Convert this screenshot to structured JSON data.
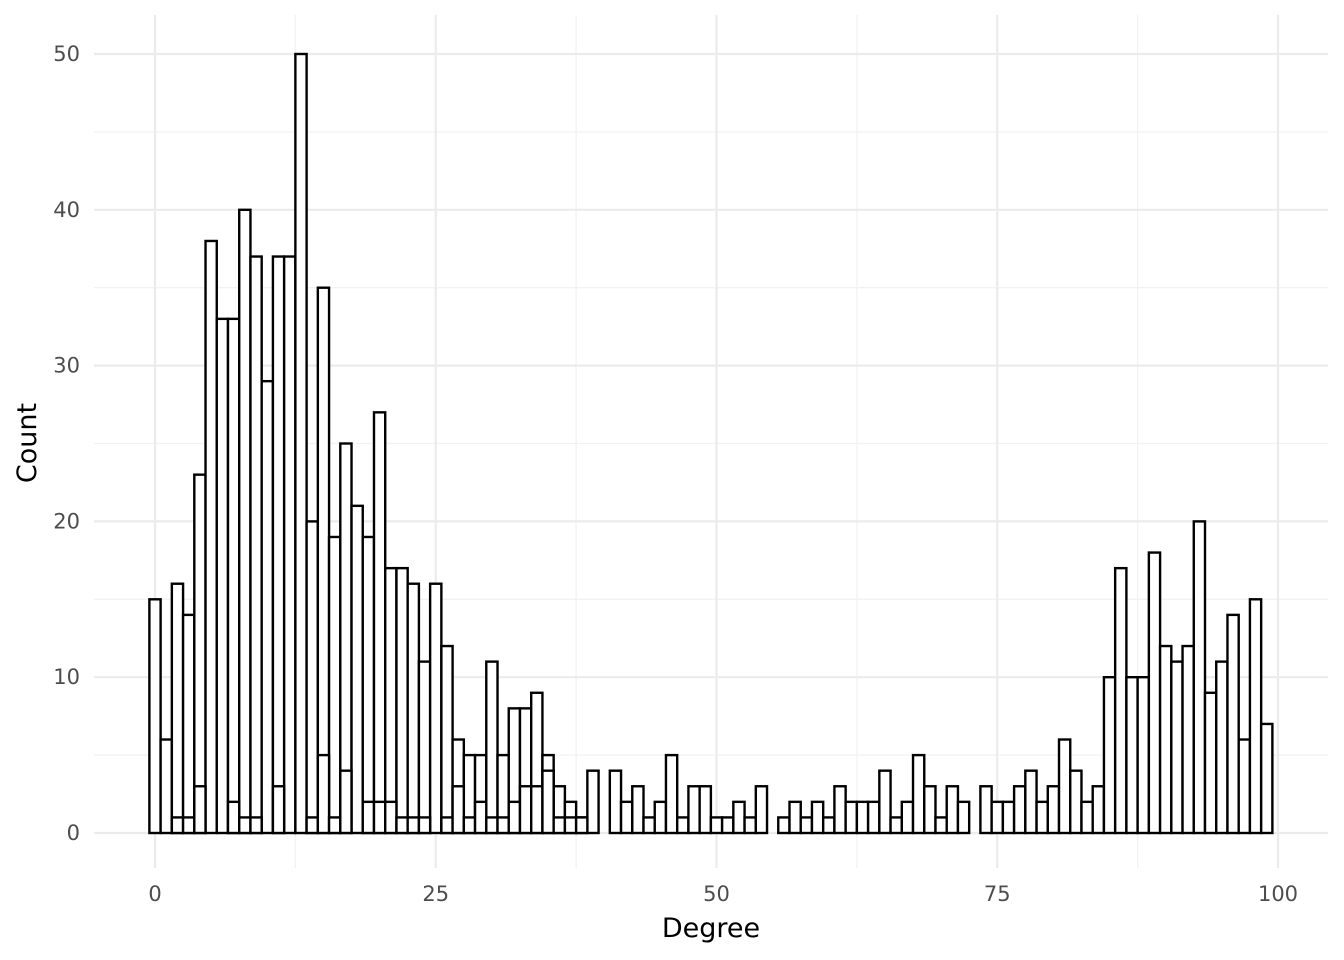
{
  "chart_data": {
    "type": "bar",
    "xlabel": "Degree",
    "ylabel": "Count",
    "xlim": [
      -2,
      100
    ],
    "ylim": [
      0,
      50
    ],
    "x_ticks": [
      0,
      25,
      50,
      75,
      100
    ],
    "y_ticks": [
      0,
      10,
      20,
      30,
      40,
      50
    ],
    "grid": true,
    "bin_width": 1,
    "series": [
      {
        "values": [
          15,
          6,
          16,
          14,
          23,
          38,
          33,
          33,
          40,
          37,
          29,
          37,
          37,
          50,
          20,
          35,
          19,
          25,
          21,
          19,
          27,
          17,
          17,
          16,
          11,
          16,
          12,
          6,
          5,
          5,
          11,
          5,
          8,
          8,
          9,
          5,
          3,
          2,
          1,
          4,
          0,
          4,
          2,
          3,
          1,
          2,
          5,
          1,
          3,
          3,
          1,
          1,
          2,
          1,
          3,
          0,
          1,
          2,
          1,
          2,
          1,
          3,
          2,
          2,
          2,
          4,
          1,
          2,
          5,
          3,
          1,
          3,
          2,
          0,
          3,
          2,
          2,
          3,
          4,
          2,
          3,
          6,
          4,
          2,
          3,
          10,
          17,
          10,
          10,
          18,
          12,
          11,
          12,
          20,
          9,
          11,
          14,
          6,
          15,
          7
        ]
      },
      {
        "values": [
          0,
          0,
          1,
          1,
          3,
          0,
          0,
          2,
          1,
          1,
          0,
          3,
          0,
          0,
          1,
          5,
          1,
          4,
          0,
          2,
          2,
          2,
          1,
          1,
          1,
          0,
          1,
          3,
          1,
          2,
          1,
          1,
          2,
          3,
          3,
          4,
          1,
          1,
          1,
          0,
          0,
          0,
          0,
          0,
          0,
          0,
          0,
          0,
          0,
          0,
          0,
          0,
          0,
          0,
          0,
          0,
          0,
          0,
          0,
          0,
          0,
          0,
          0,
          0,
          0,
          0,
          0,
          0,
          0,
          0,
          0,
          0,
          0,
          0,
          0,
          0,
          0,
          0,
          0,
          0,
          0,
          0,
          0,
          0,
          0,
          0,
          0,
          0,
          0,
          0,
          0,
          0,
          0,
          0,
          0,
          0,
          0,
          0,
          0,
          0
        ]
      }
    ]
  }
}
